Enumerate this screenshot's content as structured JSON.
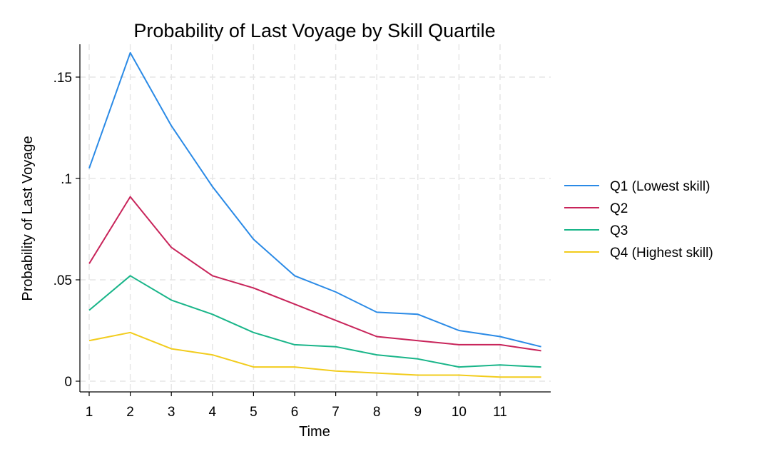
{
  "chart_data": {
    "type": "line",
    "title": "Probability of Last Voyage by Skill Quartile",
    "xlabel": "Time",
    "ylabel": "Probability of Last Voyage",
    "x": [
      1,
      2,
      3,
      4,
      5,
      6,
      7,
      8,
      9,
      10,
      11,
      12
    ],
    "xticks": [
      1,
      2,
      3,
      4,
      5,
      6,
      7,
      8,
      9,
      10,
      11
    ],
    "xtick_labels": [
      "1",
      "2",
      "3",
      "4",
      "5",
      "6",
      "7",
      "8",
      "9",
      "10",
      "11"
    ],
    "yticks": [
      0,
      0.05,
      0.1,
      0.15
    ],
    "ytick_labels": [
      "0",
      ".05",
      ".1",
      ".15"
    ],
    "xlim": [
      1,
      12
    ],
    "ylim": [
      0,
      0.165
    ],
    "grid": true,
    "legend_position": "right",
    "series": [
      {
        "name": "Q1 (Lowest skill)",
        "color": "#2a8ae6",
        "values": [
          0.105,
          0.162,
          0.126,
          0.096,
          0.07,
          0.052,
          0.044,
          0.034,
          0.033,
          0.025,
          0.022,
          0.017
        ]
      },
      {
        "name": "Q2",
        "color": "#c8245a",
        "values": [
          0.058,
          0.091,
          0.066,
          0.052,
          0.046,
          0.038,
          0.03,
          0.022,
          0.02,
          0.018,
          0.018,
          0.015
        ]
      },
      {
        "name": "Q3",
        "color": "#19b589",
        "values": [
          0.035,
          0.052,
          0.04,
          0.033,
          0.024,
          0.018,
          0.017,
          0.013,
          0.011,
          0.007,
          0.008,
          0.007
        ]
      },
      {
        "name": "Q4 (Highest skill)",
        "color": "#f2cc1c",
        "values": [
          0.02,
          0.024,
          0.016,
          0.013,
          0.007,
          0.007,
          0.005,
          0.004,
          0.003,
          0.003,
          0.002,
          0.002
        ]
      }
    ]
  }
}
